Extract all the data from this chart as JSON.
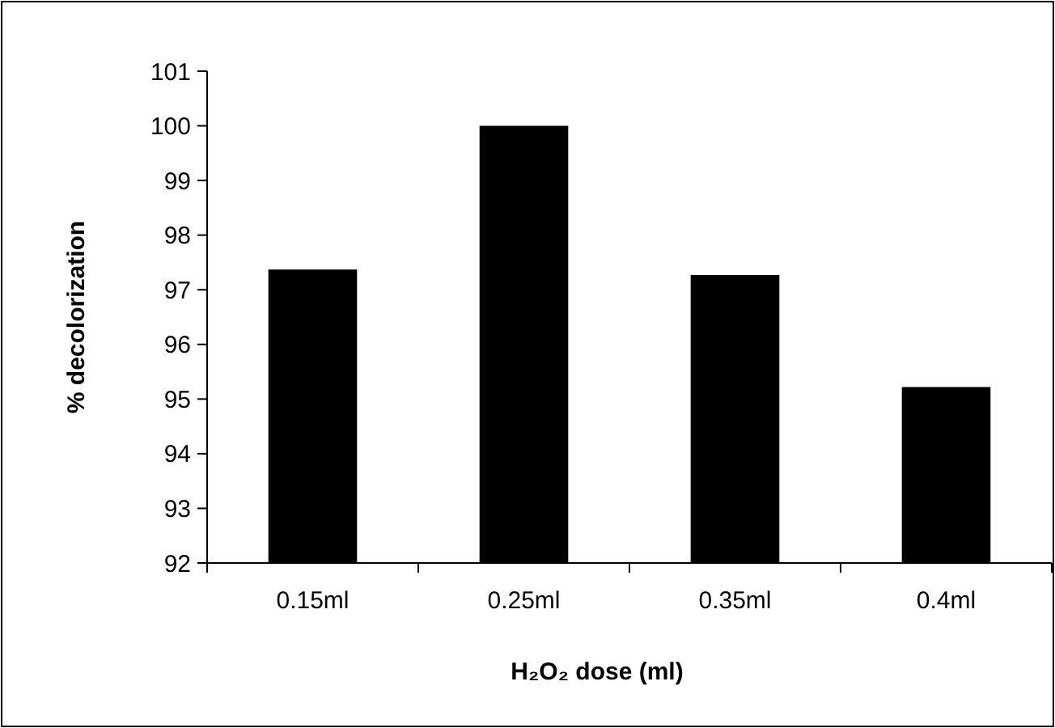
{
  "chart_data": {
    "type": "bar",
    "xlabel": "H₂O₂ dose (ml)",
    "ylabel": "% decolorization",
    "categories": [
      "0.15ml",
      "0.25ml",
      "0.35ml",
      "0.4ml"
    ],
    "values": [
      97.37,
      100,
      97.27,
      95.22
    ],
    "color": "#000000",
    "ylim": [
      92,
      101
    ],
    "yticks": [
      92,
      93,
      94,
      95,
      96,
      97,
      98,
      99,
      100,
      101
    ],
    "grid": false
  }
}
